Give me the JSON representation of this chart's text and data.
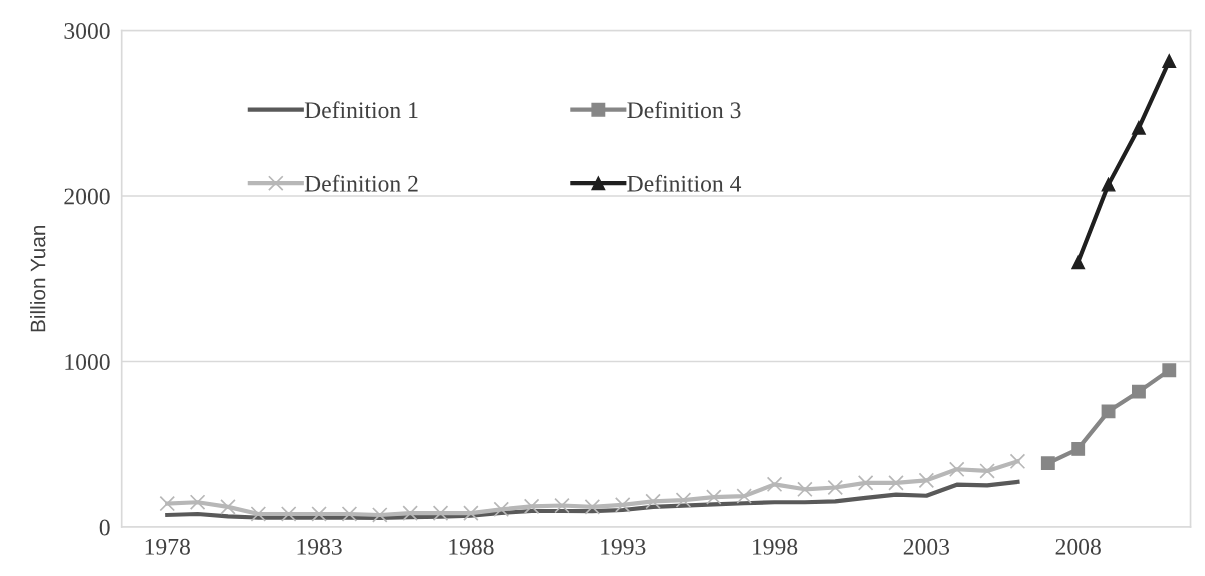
{
  "chart_data": {
    "type": "line",
    "ylabel": "Billion Yuan",
    "xlim": [
      1976.5,
      2011.7
    ],
    "xticks": [
      1978,
      1983,
      1988,
      1993,
      1998,
      2003,
      2008
    ],
    "ylim": [
      0,
      3000
    ],
    "yticks": [
      0,
      1000,
      2000,
      3000
    ],
    "grid": "y",
    "legend": "top left",
    "series": [
      {
        "name": "Definition 1",
        "color": "#595959",
        "marker": "none",
        "x": [
          1978,
          1979,
          1980,
          1981,
          1982,
          1983,
          1984,
          1985,
          1986,
          1987,
          1988,
          1989,
          1990,
          1991,
          1992,
          1993,
          1994,
          1995,
          1996,
          1997,
          1998,
          1999,
          2000,
          2001,
          2002,
          2003,
          2004,
          2005,
          2006
        ],
        "values": [
          73,
          79,
          64,
          57,
          57,
          57,
          57,
          55,
          60,
          62,
          68,
          85,
          97,
          97,
          96,
          103,
          122,
          129,
          137,
          144,
          150,
          150,
          155,
          176,
          196,
          189,
          256,
          252,
          273
        ]
      },
      {
        "name": "Definition 2",
        "color": "#b7b7b7",
        "marker": "cross",
        "x": [
          1978,
          1979,
          1980,
          1981,
          1982,
          1983,
          1984,
          1985,
          1986,
          1987,
          1988,
          1989,
          1990,
          1991,
          1992,
          1993,
          1994,
          1995,
          1996,
          1997,
          1998,
          1999,
          2000,
          2001,
          2002,
          2003,
          2004,
          2005,
          2006
        ],
        "values": [
          142,
          150,
          122,
          79,
          79,
          79,
          79,
          73,
          84,
          84,
          84,
          107,
          125,
          130,
          122,
          134,
          155,
          163,
          181,
          187,
          258,
          228,
          239,
          267,
          267,
          282,
          349,
          339,
          397
        ]
      },
      {
        "name": "Definition 3",
        "color": "#868686",
        "marker": "square",
        "x": [
          2007,
          2008,
          2009,
          2010,
          2011
        ],
        "values": [
          386,
          472,
          699,
          818,
          947
        ]
      },
      {
        "name": "Definition 4",
        "color": "#1f1f1f",
        "marker": "triangle",
        "x": [
          2008,
          2009,
          2010,
          2011
        ],
        "values": [
          1600,
          2069,
          2412,
          2815
        ]
      }
    ]
  }
}
